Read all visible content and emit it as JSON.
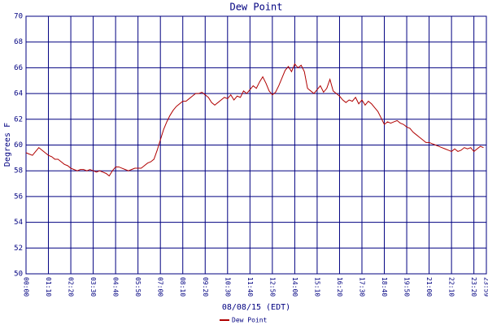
{
  "chart_data": {
    "type": "line",
    "title": "Dew Point",
    "x_label": "08/08/15 (EDT)",
    "y_label": "Degrees F",
    "x": [
      0,
      10,
      20,
      30,
      40,
      50,
      60,
      70,
      80,
      90,
      100,
      110,
      120,
      130,
      140,
      150,
      160,
      170,
      180,
      190,
      200,
      210,
      220,
      230,
      240,
      250,
      260,
      270,
      280,
      290,
      300,
      310,
      320,
      330,
      340,
      350,
      360,
      370,
      380,
      390,
      400,
      410,
      420,
      430,
      440,
      450,
      460,
      470,
      480,
      490,
      500,
      510,
      520,
      530,
      540,
      550,
      560,
      570,
      580,
      590,
      600,
      610,
      620,
      630,
      640,
      650,
      660,
      670,
      680,
      690,
      700,
      710,
      720,
      730,
      740,
      750,
      760,
      770,
      780,
      790,
      800,
      810,
      820,
      830,
      840,
      850,
      860,
      870,
      880,
      890,
      900,
      910,
      920,
      930,
      940,
      950,
      960,
      970,
      980,
      990,
      1000,
      1010,
      1020,
      1030,
      1040,
      1050,
      1060,
      1070,
      1080,
      1090,
      1100,
      1110,
      1120,
      1130,
      1140,
      1150,
      1160,
      1170,
      1180,
      1190,
      1200,
      1210,
      1220,
      1230,
      1240,
      1250,
      1260,
      1270,
      1280,
      1290,
      1300,
      1310,
      1320,
      1330,
      1340,
      1350,
      1360,
      1370,
      1380,
      1390,
      1400,
      1410,
      1420,
      1430
    ],
    "series": [
      {
        "name": "Dew Point",
        "color": "#b00000",
        "values": [
          59.4,
          59.3,
          59.2,
          59.5,
          59.8,
          59.6,
          59.4,
          59.2,
          59.1,
          58.9,
          58.9,
          58.7,
          58.5,
          58.4,
          58.2,
          58.1,
          58.0,
          58.1,
          58.1,
          58.0,
          58.1,
          58.0,
          57.9,
          58.0,
          57.9,
          57.8,
          57.6,
          58.0,
          58.3,
          58.3,
          58.2,
          58.1,
          58.0,
          58.1,
          58.2,
          58.2,
          58.2,
          58.4,
          58.6,
          58.7,
          58.9,
          59.6,
          60.4,
          61.2,
          61.8,
          62.3,
          62.7,
          63.0,
          63.2,
          63.4,
          63.4,
          63.6,
          63.8,
          64.0,
          64.0,
          64.1,
          63.9,
          63.7,
          63.3,
          63.1,
          63.3,
          63.5,
          63.7,
          63.6,
          63.9,
          63.5,
          63.8,
          63.7,
          64.2,
          64.0,
          64.3,
          64.6,
          64.4,
          64.9,
          65.3,
          64.8,
          64.2,
          63.9,
          64.1,
          64.6,
          65.2,
          65.8,
          66.1,
          65.7,
          66.3,
          66.0,
          66.2,
          65.7,
          64.4,
          64.2,
          64.0,
          64.3,
          64.6,
          64.1,
          64.4,
          65.1,
          64.2,
          64.0,
          63.8,
          63.5,
          63.3,
          63.5,
          63.4,
          63.7,
          63.2,
          63.5,
          63.1,
          63.4,
          63.2,
          62.9,
          62.6,
          62.1,
          61.6,
          61.8,
          61.7,
          61.8,
          61.9,
          61.7,
          61.6,
          61.4,
          61.3,
          61.0,
          60.8,
          60.6,
          60.4,
          60.2,
          60.2,
          60.1,
          60.0,
          59.9,
          59.8,
          59.7,
          59.6,
          59.5,
          59.7,
          59.5,
          59.6,
          59.8,
          59.7,
          59.8,
          59.5,
          59.7,
          59.9,
          59.8
        ]
      }
    ],
    "xlim": [
      0,
      1439
    ],
    "xticks": [
      {
        "value": 0,
        "label": "00:00"
      },
      {
        "value": 70,
        "label": "01:10"
      },
      {
        "value": 140,
        "label": "02:20"
      },
      {
        "value": 210,
        "label": "03:30"
      },
      {
        "value": 280,
        "label": "04:40"
      },
      {
        "value": 350,
        "label": "05:50"
      },
      {
        "value": 420,
        "label": "07:00"
      },
      {
        "value": 490,
        "label": "08:10"
      },
      {
        "value": 560,
        "label": "09:20"
      },
      {
        "value": 630,
        "label": "10:30"
      },
      {
        "value": 700,
        "label": "11:40"
      },
      {
        "value": 770,
        "label": "12:50"
      },
      {
        "value": 840,
        "label": "14:00"
      },
      {
        "value": 910,
        "label": "15:10"
      },
      {
        "value": 980,
        "label": "16:20"
      },
      {
        "value": 1050,
        "label": "17:30"
      },
      {
        "value": 1120,
        "label": "18:40"
      },
      {
        "value": 1190,
        "label": "19:50"
      },
      {
        "value": 1260,
        "label": "21:00"
      },
      {
        "value": 1330,
        "label": "22:10"
      },
      {
        "value": 1400,
        "label": "23:20"
      },
      {
        "value": 1439,
        "label": "23:59"
      }
    ],
    "ylim": [
      50,
      70
    ],
    "yticks": [
      50,
      52,
      54,
      56,
      58,
      60,
      62,
      64,
      66,
      68,
      70
    ],
    "grid": true,
    "grid_color": "#000080",
    "legend": "bottom"
  }
}
